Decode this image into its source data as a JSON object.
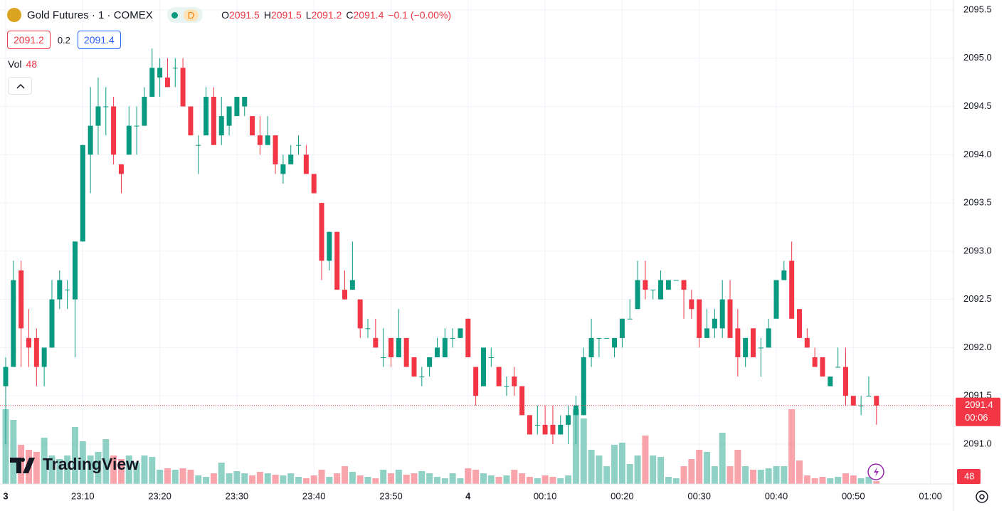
{
  "chart_data": {
    "type": "candlestick",
    "title": "Gold Futures · 1 · COMEX",
    "interval_badge": "D",
    "ohlc_labels": [
      "O",
      "H",
      "L",
      "C"
    ],
    "change": "−0.1 (−0.00%)",
    "quote": {
      "bid": 2091.2,
      "spread": 0.2,
      "ask": 2091.4
    },
    "volume_label": "Vol",
    "countdown": "00:06",
    "brand": "TradingView",
    "up_color": "#089981",
    "down_color": "#f23645",
    "grid": true,
    "x": [
      "23:00",
      "23:01",
      "23:02",
      "23:03",
      "23:04",
      "23:05",
      "23:06",
      "23:07",
      "23:08",
      "23:09",
      "23:10",
      "23:11",
      "23:12",
      "23:13",
      "23:14",
      "23:15",
      "23:16",
      "23:17",
      "23:18",
      "23:19",
      "23:20",
      "23:21",
      "23:22",
      "23:23",
      "23:24",
      "23:25",
      "23:26",
      "23:27",
      "23:28",
      "23:29",
      "23:30",
      "23:31",
      "23:32",
      "23:33",
      "23:34",
      "23:35",
      "23:36",
      "23:37",
      "23:38",
      "23:39",
      "23:40",
      "23:41",
      "23:42",
      "23:43",
      "23:44",
      "23:45",
      "23:46",
      "23:47",
      "23:48",
      "23:49",
      "23:50",
      "23:51",
      "23:52",
      "23:53",
      "23:54",
      "23:55",
      "23:56",
      "23:57",
      "23:58",
      "23:59",
      "00:00",
      "00:01",
      "00:02",
      "00:03",
      "00:04",
      "00:05",
      "00:06",
      "00:07",
      "00:08",
      "00:09",
      "00:10",
      "00:11",
      "00:12",
      "00:13",
      "00:14",
      "00:15",
      "00:16",
      "00:17",
      "00:18",
      "00:19",
      "00:20",
      "00:21",
      "00:22",
      "00:23",
      "00:24",
      "00:25",
      "00:26",
      "00:27",
      "00:28",
      "00:29",
      "00:30",
      "00:31",
      "00:32",
      "00:33",
      "00:34",
      "00:35",
      "00:36",
      "00:37",
      "00:38",
      "00:39",
      "00:40",
      "00:41",
      "00:42",
      "00:43",
      "00:44",
      "00:45",
      "00:46",
      "00:47",
      "00:48",
      "00:49",
      "00:50",
      "00:51",
      "00:52",
      "00:53"
    ],
    "open": [
      2091.6,
      2091.8,
      2092.8,
      2092.1,
      2092.1,
      2091.8,
      2092.0,
      2092.5,
      2092.6,
      2092.5,
      2093.1,
      2094.0,
      2094.3,
      2094.5,
      2094.5,
      2093.9,
      2094.0,
      2094.3,
      2094.3,
      2094.6,
      2094.8,
      2094.8,
      2094.9,
      2094.9,
      2094.5,
      2094.1,
      2094.2,
      2094.6,
      2094.2,
      2094.3,
      2094.4,
      2094.5,
      2094.4,
      2094.2,
      2094.1,
      2094.2,
      2093.8,
      2093.9,
      2094.1,
      2094.0,
      2093.8,
      2093.5,
      2092.9,
      2093.2,
      2092.6,
      2092.6,
      2092.5,
      2092.2,
      2092.1,
      2091.9,
      2092.1,
      2091.9,
      2092.1,
      2091.9,
      2091.7,
      2091.8,
      2091.9,
      2091.9,
      2092.1,
      2092.1,
      2092.3,
      2091.8,
      2091.6,
      2091.9,
      2091.8,
      2091.6,
      2091.7,
      2091.6,
      2091.3,
      2091.2,
      2091.2,
      2091.2,
      2091.1,
      2091.2,
      2091.3,
      2091.3,
      2091.9,
      2092.1,
      2092.1,
      2092.0,
      2092.1,
      2092.3,
      2092.4,
      2092.7,
      2092.6,
      2092.5,
      2092.6,
      2092.7,
      2092.7,
      2092.5,
      2092.5,
      2092.1,
      2092.2,
      2092.2,
      2092.5,
      2092.2,
      2091.9,
      2092.2,
      2092.0,
      2092.0,
      2092.3,
      2092.7,
      2092.9,
      2092.4,
      2092.1,
      2091.9,
      2091.9,
      2091.6,
      2091.8,
      2091.8,
      2091.5,
      2091.4,
      2091.5,
      2091.5
    ],
    "high": [
      2091.9,
      2092.9,
      2092.9,
      2092.4,
      2092.2,
      2092.0,
      2092.7,
      2092.8,
      2092.7,
      2093.1,
      2094.1,
      2094.7,
      2094.8,
      2094.7,
      2094.6,
      2093.9,
      2094.5,
      2094.5,
      2094.7,
      2095.1,
      2095.0,
      2095.0,
      2095.0,
      2095.0,
      2094.5,
      2094.2,
      2094.7,
      2094.7,
      2094.6,
      2094.5,
      2094.6,
      2094.6,
      2094.4,
      2094.4,
      2094.4,
      2094.2,
      2094.0,
      2094.1,
      2094.2,
      2094.1,
      2093.8,
      2093.5,
      2093.2,
      2093.2,
      2092.8,
      2093.1,
      2092.5,
      2092.3,
      2092.3,
      2092.2,
      2092.1,
      2092.4,
      2092.1,
      2091.9,
      2091.8,
      2091.9,
      2092.1,
      2092.2,
      2092.2,
      2092.2,
      2092.3,
      2091.8,
      2092.0,
      2092.0,
      2091.8,
      2091.7,
      2091.8,
      2091.6,
      2091.3,
      2091.4,
      2091.4,
      2091.4,
      2091.3,
      2091.4,
      2091.5,
      2092.0,
      2092.3,
      2092.1,
      2092.1,
      2092.1,
      2092.3,
      2092.5,
      2092.9,
      2092.9,
      2092.6,
      2092.8,
      2092.7,
      2092.7,
      2092.7,
      2092.6,
      2092.5,
      2092.4,
      2092.4,
      2092.7,
      2092.7,
      2092.4,
      2092.1,
      2092.2,
      2092.1,
      2092.3,
      2092.7,
      2092.9,
      2093.1,
      2092.4,
      2092.2,
      2092.0,
      2091.9,
      2091.7,
      2092.0,
      2092.0,
      2091.5,
      2091.5,
      2091.7,
      2091.5
    ],
    "low": [
      2091.0,
      2091.8,
      2091.8,
      2091.8,
      2091.6,
      2091.6,
      2092.0,
      2092.4,
      2092.4,
      2091.9,
      2093.1,
      2093.6,
      2094.0,
      2094.2,
      2093.9,
      2093.6,
      2094.0,
      2094.0,
      2094.3,
      2094.6,
      2094.6,
      2094.7,
      2094.7,
      2094.5,
      2094.2,
      2093.8,
      2094.2,
      2094.1,
      2094.1,
      2094.2,
      2094.4,
      2094.4,
      2094.2,
      2094.0,
      2094.1,
      2093.8,
      2093.7,
      2093.9,
      2094.0,
      2093.8,
      2093.6,
      2092.7,
      2092.8,
      2092.6,
      2092.5,
      2092.6,
      2092.1,
      2092.1,
      2092.0,
      2091.8,
      2091.8,
      2091.9,
      2091.8,
      2091.7,
      2091.6,
      2091.7,
      2091.9,
      2091.9,
      2092.0,
      2092.1,
      2091.9,
      2091.4,
      2091.6,
      2091.8,
      2091.6,
      2091.5,
      2091.5,
      2091.3,
      2091.1,
      2091.1,
      2091.1,
      2091.0,
      2091.1,
      2091.0,
      2091.0,
      2091.3,
      2091.8,
      2091.9,
      2092.1,
      2091.9,
      2092.0,
      2092.3,
      2092.4,
      2092.5,
      2092.5,
      2092.5,
      2092.6,
      2092.7,
      2092.3,
      2092.3,
      2092.0,
      2092.1,
      2092.1,
      2092.1,
      2092.1,
      2091.7,
      2091.8,
      2091.9,
      2091.7,
      2092.0,
      2092.3,
      2092.7,
      2092.3,
      2092.1,
      2092.0,
      2091.8,
      2091.7,
      2091.6,
      2091.8,
      2091.4,
      2091.4,
      2091.3,
      2091.5,
      2091.2
    ],
    "close": [
      2091.8,
      2092.7,
      2092.2,
      2092.0,
      2091.8,
      2092.0,
      2092.5,
      2092.7,
      2092.6,
      2093.1,
      2094.1,
      2094.3,
      2094.5,
      2094.5,
      2094.0,
      2093.8,
      2094.3,
      2094.3,
      2094.6,
      2094.9,
      2094.9,
      2094.7,
      2094.9,
      2094.5,
      2094.2,
      2094.1,
      2094.6,
      2094.1,
      2094.4,
      2094.5,
      2094.6,
      2094.6,
      2094.2,
      2094.1,
      2094.2,
      2093.9,
      2093.9,
      2094.0,
      2094.1,
      2093.8,
      2093.6,
      2092.9,
      2093.2,
      2092.6,
      2092.5,
      2092.7,
      2092.2,
      2092.2,
      2092.0,
      2091.9,
      2091.9,
      2092.1,
      2091.8,
      2091.7,
      2091.7,
      2091.9,
      2092.0,
      2092.1,
      2092.1,
      2092.2,
      2091.9,
      2091.5,
      2092.0,
      2091.9,
      2091.6,
      2091.6,
      2091.6,
      2091.3,
      2091.1,
      2091.2,
      2091.1,
      2091.1,
      2091.2,
      2091.3,
      2091.4,
      2091.9,
      2092.1,
      2092.1,
      2092.1,
      2092.1,
      2092.3,
      2092.3,
      2092.7,
      2092.6,
      2092.6,
      2092.7,
      2092.7,
      2092.7,
      2092.6,
      2092.4,
      2092.1,
      2092.2,
      2092.3,
      2092.5,
      2092.1,
      2091.9,
      2092.1,
      2091.9,
      2092.0,
      2092.2,
      2092.7,
      2092.8,
      2092.3,
      2092.1,
      2092.0,
      2091.8,
      2091.7,
      2091.7,
      2091.8,
      2091.5,
      2091.4,
      2091.4,
      2091.5,
      2091.4
    ],
    "volume": [
      1260,
      1080,
      660,
      576,
      540,
      780,
      480,
      420,
      480,
      960,
      720,
      480,
      540,
      756,
      480,
      420,
      480,
      360,
      480,
      456,
      240,
      264,
      240,
      264,
      240,
      144,
      120,
      180,
      360,
      180,
      216,
      180,
      144,
      204,
      180,
      156,
      144,
      180,
      120,
      96,
      144,
      240,
      120,
      180,
      300,
      204,
      144,
      120,
      96,
      240,
      180,
      240,
      156,
      180,
      216,
      180,
      120,
      96,
      180,
      96,
      264,
      240,
      180,
      144,
      120,
      144,
      240,
      180,
      120,
      96,
      144,
      120,
      96,
      144,
      1260,
      1104,
      576,
      480,
      300,
      660,
      696,
      336,
      480,
      816,
      480,
      456,
      120,
      96,
      300,
      420,
      576,
      540,
      300,
      864,
      300,
      576,
      300,
      240,
      240,
      264,
      300,
      300,
      1260,
      396,
      144,
      96,
      120,
      96,
      120,
      180,
      144,
      96,
      120,
      48
    ],
    "ylim": [
      2090.587,
      2095.603
    ],
    "yticks": [
      {
        "value": 2091,
        "label": "2091.0"
      },
      2091.5,
      {
        "value": 2092,
        "label": "2092.0"
      },
      2092.5,
      {
        "value": 2093,
        "label": "2093.0"
      },
      2093.5,
      {
        "value": 2094,
        "label": "2094.0"
      },
      2094.5,
      {
        "value": 2095,
        "label": "2095.0"
      },
      2095.5
    ],
    "xticks": [
      {
        "value": "23:00",
        "label": "3"
      },
      "23:10",
      "23:20",
      "23:30",
      "23:40",
      "23:50",
      {
        "value": "00:00",
        "label": "4"
      },
      "00:10",
      "00:20",
      "00:30",
      "00:40",
      "00:50",
      "01:00"
    ]
  }
}
